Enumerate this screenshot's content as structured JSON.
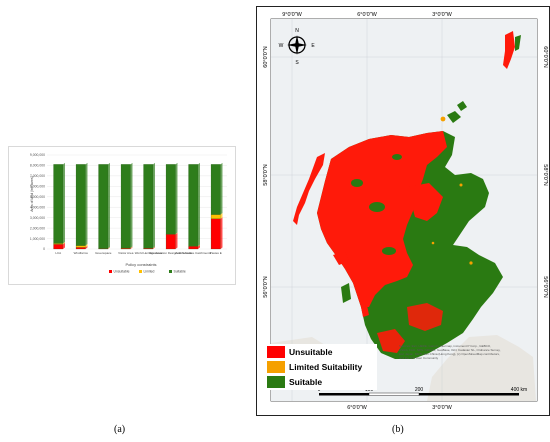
{
  "captions": {
    "a": "(a)",
    "b": "(b)"
  },
  "chart_data": {
    "type": "bar",
    "stacked": true,
    "categories": [
      "LCA",
      "Windfarms",
      "Greenspace",
      "Visitor Area",
      "World Heritage Area",
      "Conservation Designation Areas",
      "Acid Sensitive Catchments",
      "Pastes E"
    ],
    "series": [
      {
        "name": "Unsuitable",
        "color": "#ff0000",
        "values": [
          450000,
          150000,
          40000,
          60000,
          60000,
          1400000,
          250000,
          2900000
        ]
      },
      {
        "name": "Limited",
        "color": "#ffc000",
        "values": [
          80000,
          180000,
          20000,
          30000,
          20000,
          20000,
          20000,
          400000
        ]
      },
      {
        "name": "Suitable",
        "color": "#2e7d1b",
        "values": [
          7570000,
          7770000,
          8040000,
          8010000,
          8020000,
          6680000,
          7830000,
          4800000
        ]
      }
    ],
    "yticks": [
      "0",
      "1,000,000",
      "2,000,000",
      "3,000,000",
      "4,000,000",
      "5,000,000",
      "6,000,000",
      "7,000,000",
      "8,000,000",
      "9,000,000"
    ],
    "ylim": [
      0,
      9000000
    ],
    "ylabel": "Area of land (hectares)",
    "xlabel": "Policy constraints",
    "legend_position": "bottom"
  },
  "map": {
    "top_ticks": [
      "9°0'0\"W",
      "6°0'0\"W",
      "3°0'0\"W"
    ],
    "bottom_ticks": [
      "6°0'0\"W",
      "3°0'0\"W"
    ],
    "left_ticks": [
      "60°0'0\"N",
      "58°0'0\"N",
      "56°0'0\"N"
    ],
    "right_ticks": [
      "60°0'0\"N",
      "58°0'0\"N",
      "56°0'0\"N"
    ],
    "compass": {
      "n": "N",
      "s": "S",
      "e": "E",
      "w": "W"
    },
    "legend": [
      {
        "label": "Unsuitable",
        "color": "#ff0000"
      },
      {
        "label": "Limited Suitability",
        "color": "#f5a000"
      },
      {
        "label": "Suitable",
        "color": "#2a7a12"
      }
    ],
    "scale_labels": [
      "0",
      "100",
      "200",
      "400 km"
    ],
    "attribution": "Sources: Esri, HERE, Garmin, Intermap, increment P Corp., GEBCO, USGS, FAO, NPS, NRCAN, GeoBase, IGN, Kadaster NL, Ordnance Survey, Esri Japan, METI, Esri China (Hong Kong), (c) OpenStreetMap contributors, and the GIS User Community"
  }
}
